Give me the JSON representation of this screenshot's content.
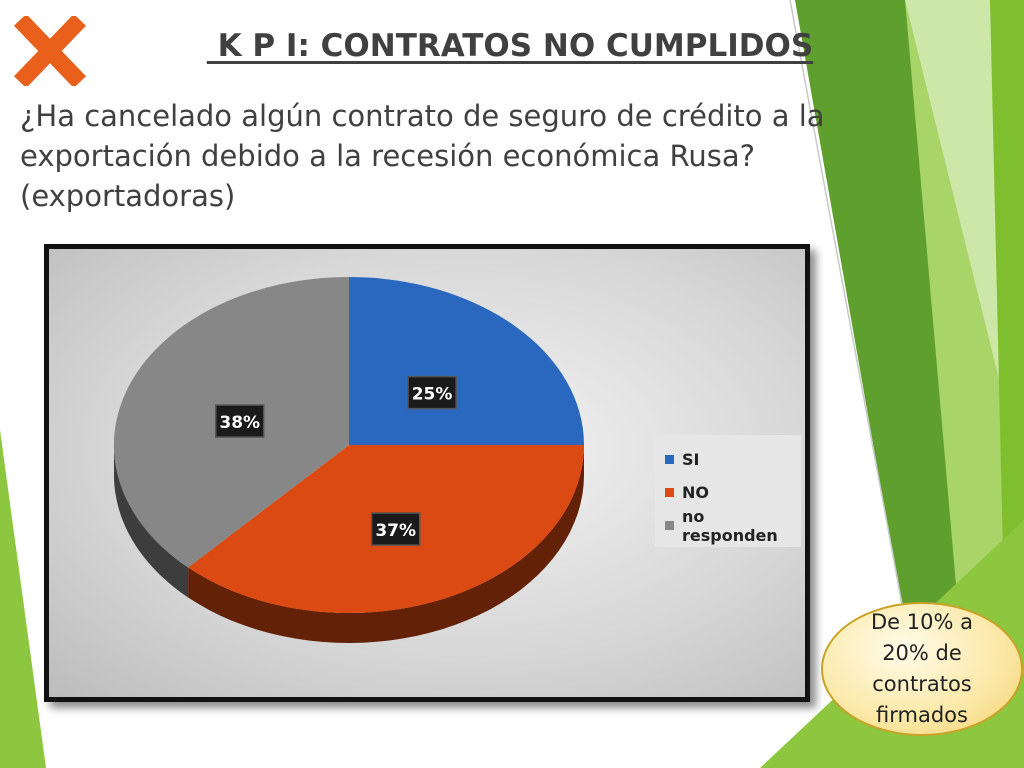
{
  "slide": {
    "title": " K P I: CONTRATOS NO CUMPLIDOS",
    "question": "¿Ha cancelado algún contrato de seguro de crédito a la exportación debido a la recesión económica Rusa? (exportadoras)",
    "callout": "De 10% a 20% de contratos firmados",
    "close_icon": "x-mark-icon",
    "colors": {
      "accent_green": "#8dc63f",
      "dark_green": "#5f9f2e",
      "x_mark": "#e8601c",
      "text": "#404040"
    }
  },
  "chart_data": {
    "type": "pie",
    "title": "",
    "categories": [
      "SI",
      "NO",
      "no responden"
    ],
    "values": [
      25,
      37,
      38
    ],
    "labels": [
      "25%",
      "37%",
      "38%"
    ],
    "colors": [
      "#2a68c0",
      "#db4a12",
      "#878787"
    ],
    "legend_position": "right",
    "style": "3d"
  }
}
